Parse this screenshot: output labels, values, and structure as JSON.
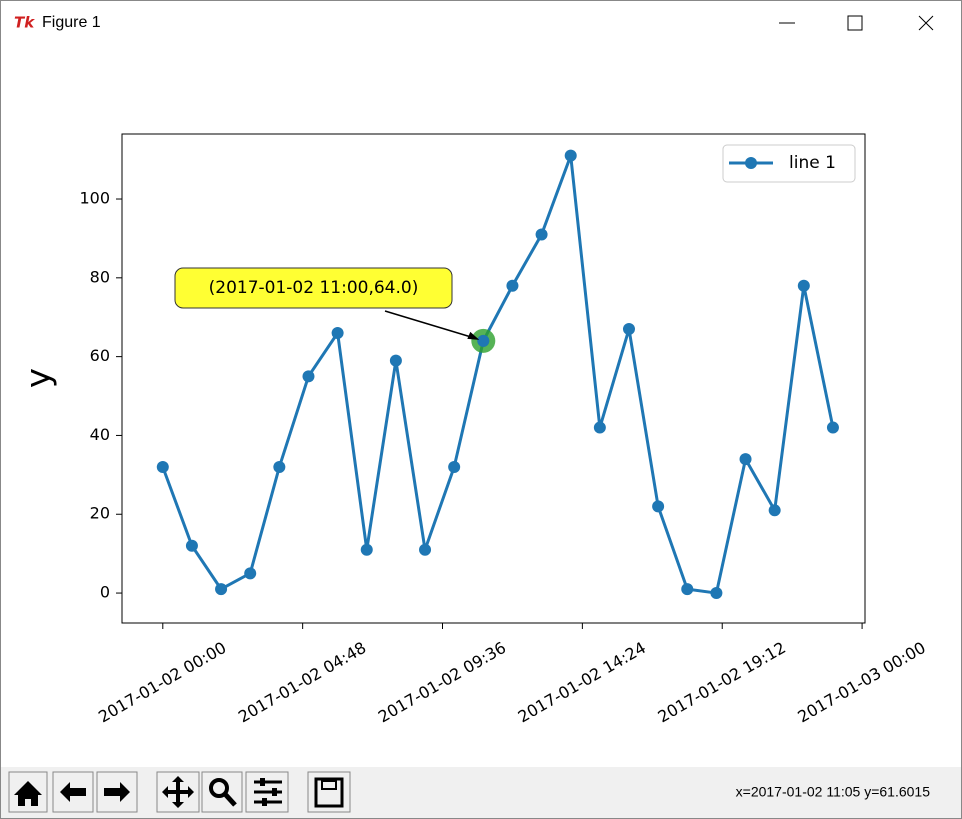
{
  "window": {
    "title": "Figure 1",
    "status": "x=2017-01-02 11:05 y=61.6015"
  },
  "chart_data": {
    "type": "line",
    "x": [
      "2017-01-02 00:00",
      "2017-01-02 01:00",
      "2017-01-02 02:00",
      "2017-01-02 03:00",
      "2017-01-02 04:00",
      "2017-01-02 05:00",
      "2017-01-02 06:00",
      "2017-01-02 07:00",
      "2017-01-02 08:00",
      "2017-01-02 09:00",
      "2017-01-02 10:00",
      "2017-01-02 11:00",
      "2017-01-02 12:00",
      "2017-01-02 13:00",
      "2017-01-02 14:00",
      "2017-01-02 15:00",
      "2017-01-02 16:00",
      "2017-01-02 17:00",
      "2017-01-02 18:00",
      "2017-01-02 19:00",
      "2017-01-02 20:00",
      "2017-01-02 21:00",
      "2017-01-02 22:00",
      "2017-01-02 23:00"
    ],
    "series": [
      {
        "name": "line 1",
        "color": "#1f77b4",
        "values": [
          32,
          12,
          1,
          5,
          32,
          55,
          66,
          11,
          59,
          11,
          32,
          64,
          78,
          91,
          111,
          42,
          67,
          22,
          1,
          0,
          34,
          21,
          78,
          42
        ]
      }
    ],
    "ylabel": "y",
    "xlim": [
      "2017-01-01 22:36",
      "2017-01-03 00:06"
    ],
    "xticks": [
      "2017-01-02 00:00",
      "2017-01-02 04:48",
      "2017-01-02 09:36",
      "2017-01-02 14:24",
      "2017-01-02 19:12",
      "2017-01-03 00:00"
    ],
    "ylim": [
      -7.6,
      116.5
    ],
    "yticks": [
      0,
      20,
      40,
      60,
      80,
      100
    ],
    "legend": "upper right",
    "annotation": {
      "text": "(2017-01-02 11:00,64.0)",
      "x": "2017-01-02 11:00",
      "y": 64,
      "box_color": "#ffff33",
      "highlight_color": "#2ca02c"
    }
  }
}
